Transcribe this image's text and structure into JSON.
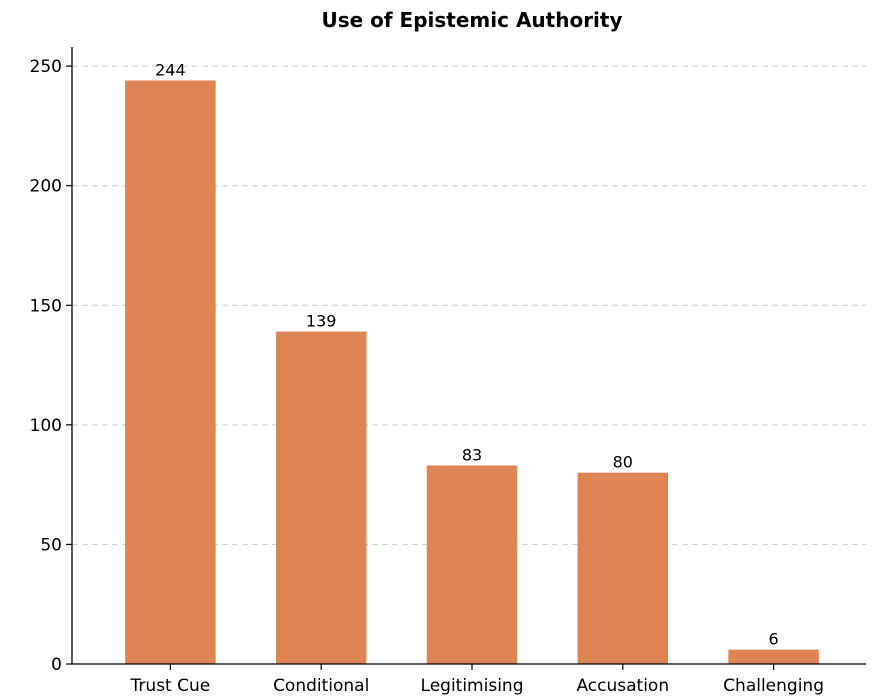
{
  "chart_data": {
    "type": "bar",
    "title": "Use of Epistemic Authority",
    "xlabel": "",
    "ylabel": "",
    "categories": [
      "Trust Cue",
      "Conditional",
      "Legitimising",
      "Accusation",
      "Challenging"
    ],
    "values": [
      244,
      139,
      83,
      80,
      6
    ],
    "ylim": [
      0,
      258
    ],
    "yticks": [
      0,
      50,
      100,
      150,
      200,
      250
    ],
    "grid": "horizontal dashed",
    "bar_color": "#dd8452",
    "data_labels": true
  }
}
